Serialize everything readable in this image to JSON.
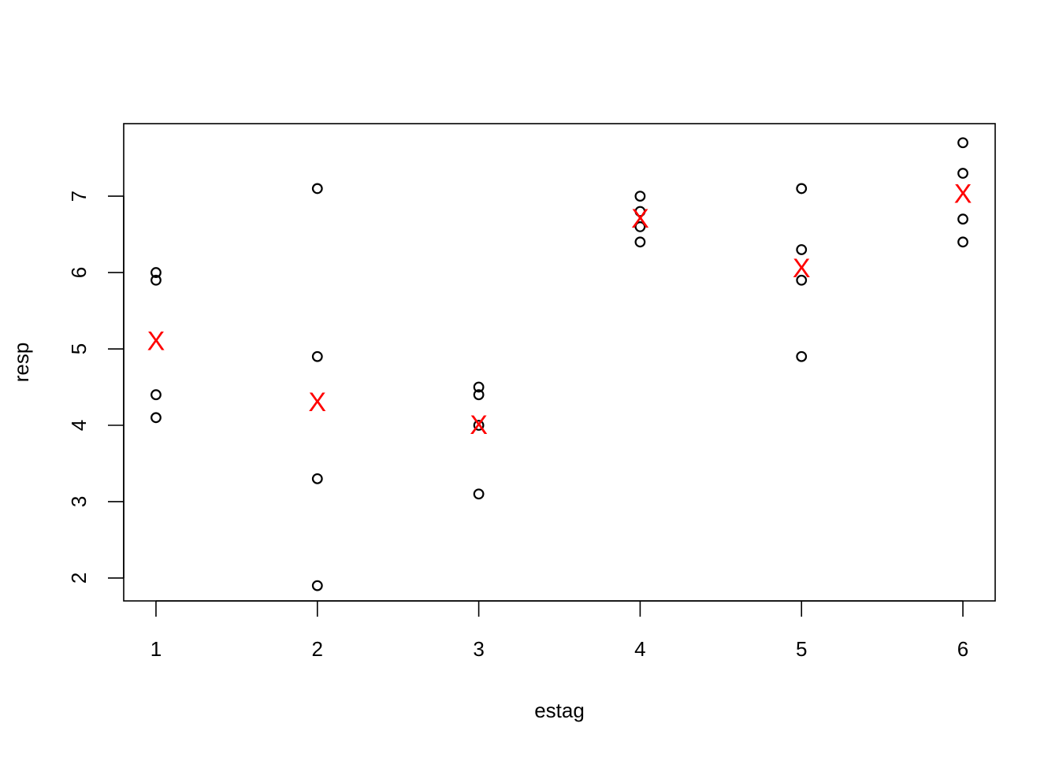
{
  "chart_data": {
    "type": "scatter",
    "title": "",
    "xlabel": "estag",
    "ylabel": "resp",
    "xlim": [
      0.8,
      6.2
    ],
    "ylim": [
      1.7,
      7.95
    ],
    "x_ticks": [
      1,
      2,
      3,
      4,
      5,
      6
    ],
    "y_ticks": [
      2,
      3,
      4,
      5,
      6,
      7
    ],
    "grid": false,
    "legend": "none",
    "series": [
      {
        "marker": "open-circle",
        "color": "#000000",
        "points": [
          {
            "x": 1,
            "y": 6.0
          },
          {
            "x": 1,
            "y": 5.9
          },
          {
            "x": 1,
            "y": 4.4
          },
          {
            "x": 1,
            "y": 4.1
          },
          {
            "x": 2,
            "y": 7.1
          },
          {
            "x": 2,
            "y": 4.9
          },
          {
            "x": 2,
            "y": 3.3
          },
          {
            "x": 2,
            "y": 1.9
          },
          {
            "x": 3,
            "y": 4.5
          },
          {
            "x": 3,
            "y": 4.4
          },
          {
            "x": 3,
            "y": 4.0
          },
          {
            "x": 3,
            "y": 3.1
          },
          {
            "x": 4,
            "y": 7.0
          },
          {
            "x": 4,
            "y": 6.8
          },
          {
            "x": 4,
            "y": 6.6
          },
          {
            "x": 4,
            "y": 6.4
          },
          {
            "x": 5,
            "y": 7.1
          },
          {
            "x": 5,
            "y": 6.3
          },
          {
            "x": 5,
            "y": 5.9
          },
          {
            "x": 5,
            "y": 4.9
          },
          {
            "x": 6,
            "y": 7.7
          },
          {
            "x": 6,
            "y": 7.3
          },
          {
            "x": 6,
            "y": 6.7
          },
          {
            "x": 6,
            "y": 6.4
          }
        ]
      },
      {
        "marker": "X",
        "color": "#ff0000",
        "points": [
          {
            "x": 1,
            "y": 5.1
          },
          {
            "x": 2,
            "y": 4.3
          },
          {
            "x": 3,
            "y": 4.0
          },
          {
            "x": 4,
            "y": 6.7
          },
          {
            "x": 5,
            "y": 6.05
          },
          {
            "x": 6,
            "y": 7.025
          }
        ]
      }
    ]
  }
}
